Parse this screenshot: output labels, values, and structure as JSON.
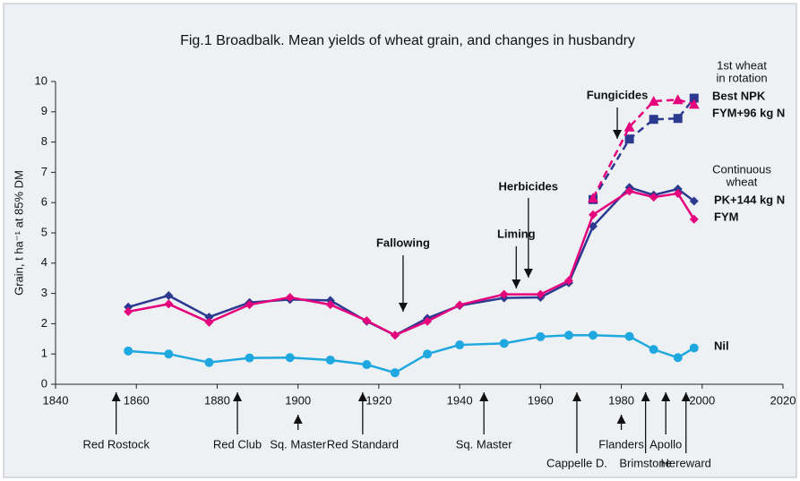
{
  "chart_data": {
    "type": "line",
    "title": "Fig.1  Broadbalk. Mean yields of wheat grain, and changes in husbandry",
    "y_label": "Grain, t ha⁻¹ at 85% DM",
    "xlim": [
      1840,
      2020
    ],
    "xticks": [
      1840,
      1860,
      1880,
      1900,
      1920,
      1940,
      1960,
      1980,
      2000,
      2020
    ],
    "ylim": [
      0,
      10
    ],
    "yticks": [
      0,
      1,
      2,
      3,
      4,
      5,
      6,
      7,
      8,
      9,
      10
    ],
    "legend_groups": [
      "1st wheat",
      "in rotation",
      "Continuous",
      "wheat"
    ],
    "series": [
      {
        "name": "Best NPK",
        "color": "#2b3990",
        "marker": "square",
        "dashed": true,
        "x": [
          1973,
          1982,
          1988,
          1994,
          1998
        ],
        "values": [
          6.1,
          8.1,
          8.75,
          8.78,
          9.45
        ]
      },
      {
        "name": "FYM+96 kg N",
        "color": "#e5007d",
        "marker": "triangle",
        "dashed": true,
        "x": [
          1973,
          1982,
          1988,
          1994,
          1998
        ],
        "values": [
          6.15,
          8.5,
          9.35,
          9.4,
          9.25
        ]
      },
      {
        "name": "PK+144 kg N",
        "color": "#2b3990",
        "marker": "diamond",
        "dashed": false,
        "x": [
          1858,
          1868,
          1878,
          1888,
          1898,
          1908,
          1917,
          1924,
          1932,
          1940,
          1951,
          1960,
          1967,
          1973,
          1982,
          1988,
          1994,
          1998
        ],
        "values": [
          2.55,
          2.93,
          2.22,
          2.7,
          2.8,
          2.77,
          2.08,
          1.62,
          2.18,
          2.6,
          2.85,
          2.87,
          3.35,
          5.22,
          6.5,
          6.25,
          6.45,
          6.05
        ]
      },
      {
        "name": "FYM",
        "color": "#e5007d",
        "marker": "diamond",
        "dashed": false,
        "x": [
          1858,
          1868,
          1878,
          1888,
          1898,
          1908,
          1917,
          1924,
          1932,
          1940,
          1951,
          1960,
          1967,
          1973,
          1982,
          1988,
          1994,
          1998
        ],
        "values": [
          2.4,
          2.65,
          2.05,
          2.63,
          2.87,
          2.63,
          2.1,
          1.62,
          2.08,
          2.62,
          2.97,
          2.97,
          3.42,
          5.6,
          6.38,
          6.18,
          6.3,
          5.45
        ]
      },
      {
        "name": "Nil",
        "color": "#1fa8e0",
        "marker": "circle",
        "dashed": false,
        "x": [
          1858,
          1868,
          1878,
          1888,
          1898,
          1908,
          1917,
          1924,
          1932,
          1940,
          1951,
          1960,
          1967,
          1973,
          1982,
          1988,
          1994,
          1998
        ],
        "values": [
          1.1,
          1.0,
          0.72,
          0.87,
          0.88,
          0.8,
          0.65,
          0.38,
          1.0,
          1.3,
          1.35,
          1.57,
          1.62,
          1.62,
          1.58,
          1.15,
          0.88,
          1.2
        ]
      }
    ],
    "husbandry": [
      {
        "text": "Fallowing",
        "x": 1926
      },
      {
        "text": "Liming",
        "x": 1954
      },
      {
        "text": "Herbicides",
        "x": 1957
      },
      {
        "text": "Fungicides",
        "x": 1979
      }
    ],
    "varieties": [
      {
        "text": "Red Rostock",
        "x": 1855
      },
      {
        "text": "Red Club",
        "x": 1885
      },
      {
        "text": "Sq. Master",
        "x": 1900
      },
      {
        "text": "Red Standard",
        "x": 1916
      },
      {
        "text": "Sq. Master",
        "x": 1946
      },
      {
        "text": "Cappelle D.",
        "x": 1969
      },
      {
        "text": "Flanders",
        "x": 1980
      },
      {
        "text": "Brimstone",
        "x": 1986
      },
      {
        "text": "Apollo",
        "x": 1991
      },
      {
        "text": "Hereward",
        "x": 1996
      }
    ]
  }
}
